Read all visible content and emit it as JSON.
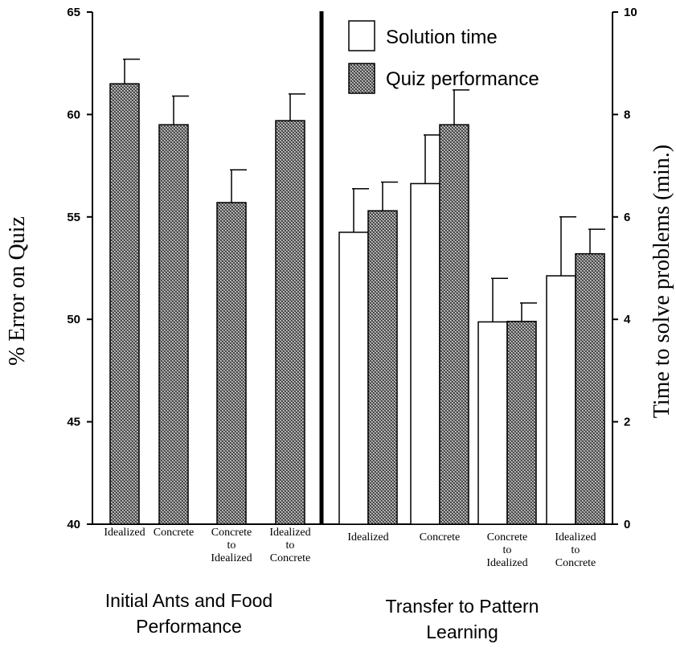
{
  "chart_data": {
    "type": "bar",
    "left_axis": {
      "label": "% Error on Quiz",
      "ylim": [
        40,
        65
      ],
      "ticks": [
        "40",
        "45",
        "50",
        "55",
        "60",
        "65"
      ]
    },
    "right_axis": {
      "label": "Time to solve problems (min.)",
      "ylim": [
        0,
        10
      ],
      "ticks": [
        "0",
        "2",
        "4",
        "6",
        "8",
        "10"
      ]
    },
    "legend": {
      "placement": "top-right",
      "entries": [
        {
          "name": "Solution time",
          "style": "white"
        },
        {
          "name": "Quiz performance",
          "style": "checkered"
        }
      ]
    },
    "groups": [
      {
        "label": [
          "Initial Ants and Food",
          "Performance"
        ],
        "categories": [
          {
            "label": [
              "Idealized"
            ],
            "quiz": 61.5,
            "quiz_err": 1.2
          },
          {
            "label": [
              "Concrete"
            ],
            "quiz": 59.5,
            "quiz_err": 1.4
          },
          {
            "label": [
              "Concrete",
              "to",
              "Idealized"
            ],
            "quiz": 55.7,
            "quiz_err": 1.6
          },
          {
            "label": [
              "Idealized",
              "to",
              "Concrete"
            ],
            "quiz": 59.7,
            "quiz_err": 1.3
          }
        ]
      },
      {
        "label": [
          "Transfer to Pattern",
          "Learning"
        ],
        "categories": [
          {
            "label": [
              "Idealized"
            ],
            "time": 5.7,
            "time_err": 0.85,
            "quiz": 55.3,
            "quiz_err": 1.4
          },
          {
            "label": [
              "Concrete"
            ],
            "time": 6.65,
            "time_err": 0.95,
            "quiz": 59.5,
            "quiz_err": 1.7
          },
          {
            "label": [
              "Concrete",
              "to",
              "Idealized"
            ],
            "time": 3.95,
            "time_err": 0.85,
            "quiz": 49.9,
            "quiz_err": 0.9
          },
          {
            "label": [
              "Idealized",
              "to",
              "Concrete"
            ],
            "time": 4.85,
            "time_err": 1.15,
            "quiz": 53.2,
            "quiz_err": 1.2
          }
        ]
      }
    ],
    "grid": false
  }
}
